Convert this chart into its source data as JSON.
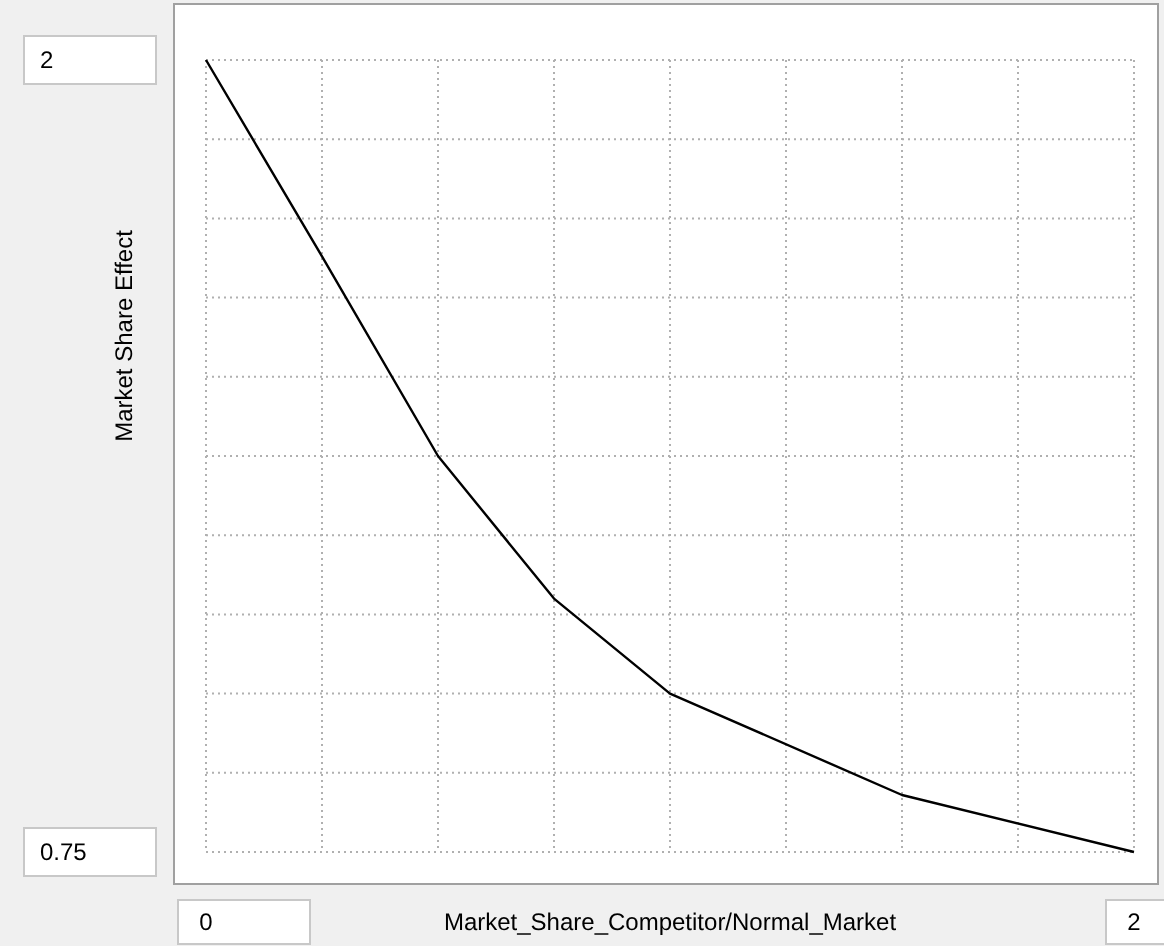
{
  "chart_data": {
    "type": "line",
    "xlabel": "Market_Share_Competitor/Normal_Market",
    "ylabel": "Market Share Effect",
    "x": [
      0,
      0.25,
      0.5,
      0.75,
      1,
      1.5,
      2
    ],
    "series": [
      {
        "color": "#000000",
        "values": [
          2,
          1.69,
          1.375,
          1.15,
          1.0,
          0.84,
          0.75
        ]
      }
    ],
    "xlim": [
      0,
      2
    ],
    "ylim": [
      0.75,
      2
    ],
    "xticks": [
      0,
      {
        "value": 0.25,
        "label": null
      },
      {
        "value": 0.5,
        "label": null
      },
      {
        "value": 0.75,
        "label": null
      },
      {
        "value": 1,
        "label": null
      },
      {
        "value": 1.25,
        "label": null
      },
      {
        "value": 1.5,
        "label": null
      },
      {
        "value": 1.75,
        "label": null
      },
      2
    ],
    "yticks": [
      0.75,
      {
        "value": 0.875,
        "label": null
      },
      {
        "value": 1,
        "label": null
      },
      {
        "value": 1.125,
        "label": null
      },
      {
        "value": 1.25,
        "label": null
      },
      {
        "value": 1.375,
        "label": null
      },
      {
        "value": 1.5,
        "label": null
      },
      {
        "value": 1.625,
        "label": null
      },
      {
        "value": 1.75,
        "label": null
      },
      {
        "value": 1.875,
        "label": null
      },
      2
    ],
    "grid": true,
    "marker": "none",
    "line_style": "solid"
  }
}
